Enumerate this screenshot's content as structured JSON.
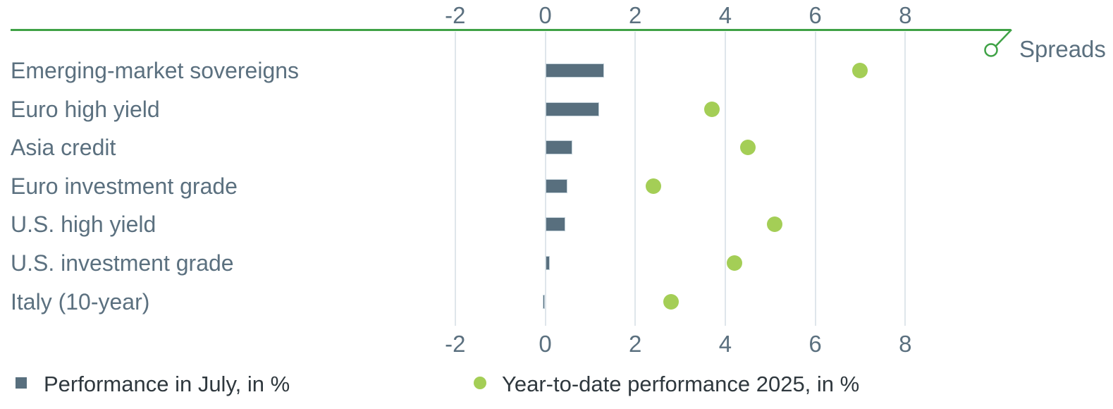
{
  "chart_data": {
    "type": "bar",
    "orientation": "horizontal",
    "title": "",
    "categories": [
      "Emerging-market sovereigns",
      "Euro high yield",
      "Asia credit",
      "Euro investment grade",
      "U.S. high yield",
      "U.S. investment grade",
      "Italy (10-year)"
    ],
    "series": [
      {
        "name": "Performance in July, in %",
        "type": "bar",
        "color": "#586f7e",
        "values": [
          1.3,
          1.2,
          0.6,
          0.5,
          0.45,
          0.1,
          -0.05
        ]
      },
      {
        "name": "Year-to-date performance 2025, in %",
        "type": "scatter",
        "color": "#a4ce56",
        "values": [
          7.0,
          3.7,
          4.5,
          2.4,
          5.1,
          4.2,
          2.8
        ]
      }
    ],
    "x_ticks": [
      -2,
      0,
      2,
      4,
      6,
      8
    ],
    "xlim": [
      -2.5,
      8.7
    ],
    "axis_tick_positions": "top and bottom",
    "grid": "vertical gridlines at tick values",
    "annotation": "Spreads",
    "legend_position": "bottom",
    "colors": {
      "bar_slate": "#586f7e",
      "dot_green": "#a4ce56",
      "axis_line_green": "#3fa246",
      "gridline": "#dfe6eb",
      "axis_label": "#5b707f",
      "legend_text": "#2f383e"
    }
  }
}
